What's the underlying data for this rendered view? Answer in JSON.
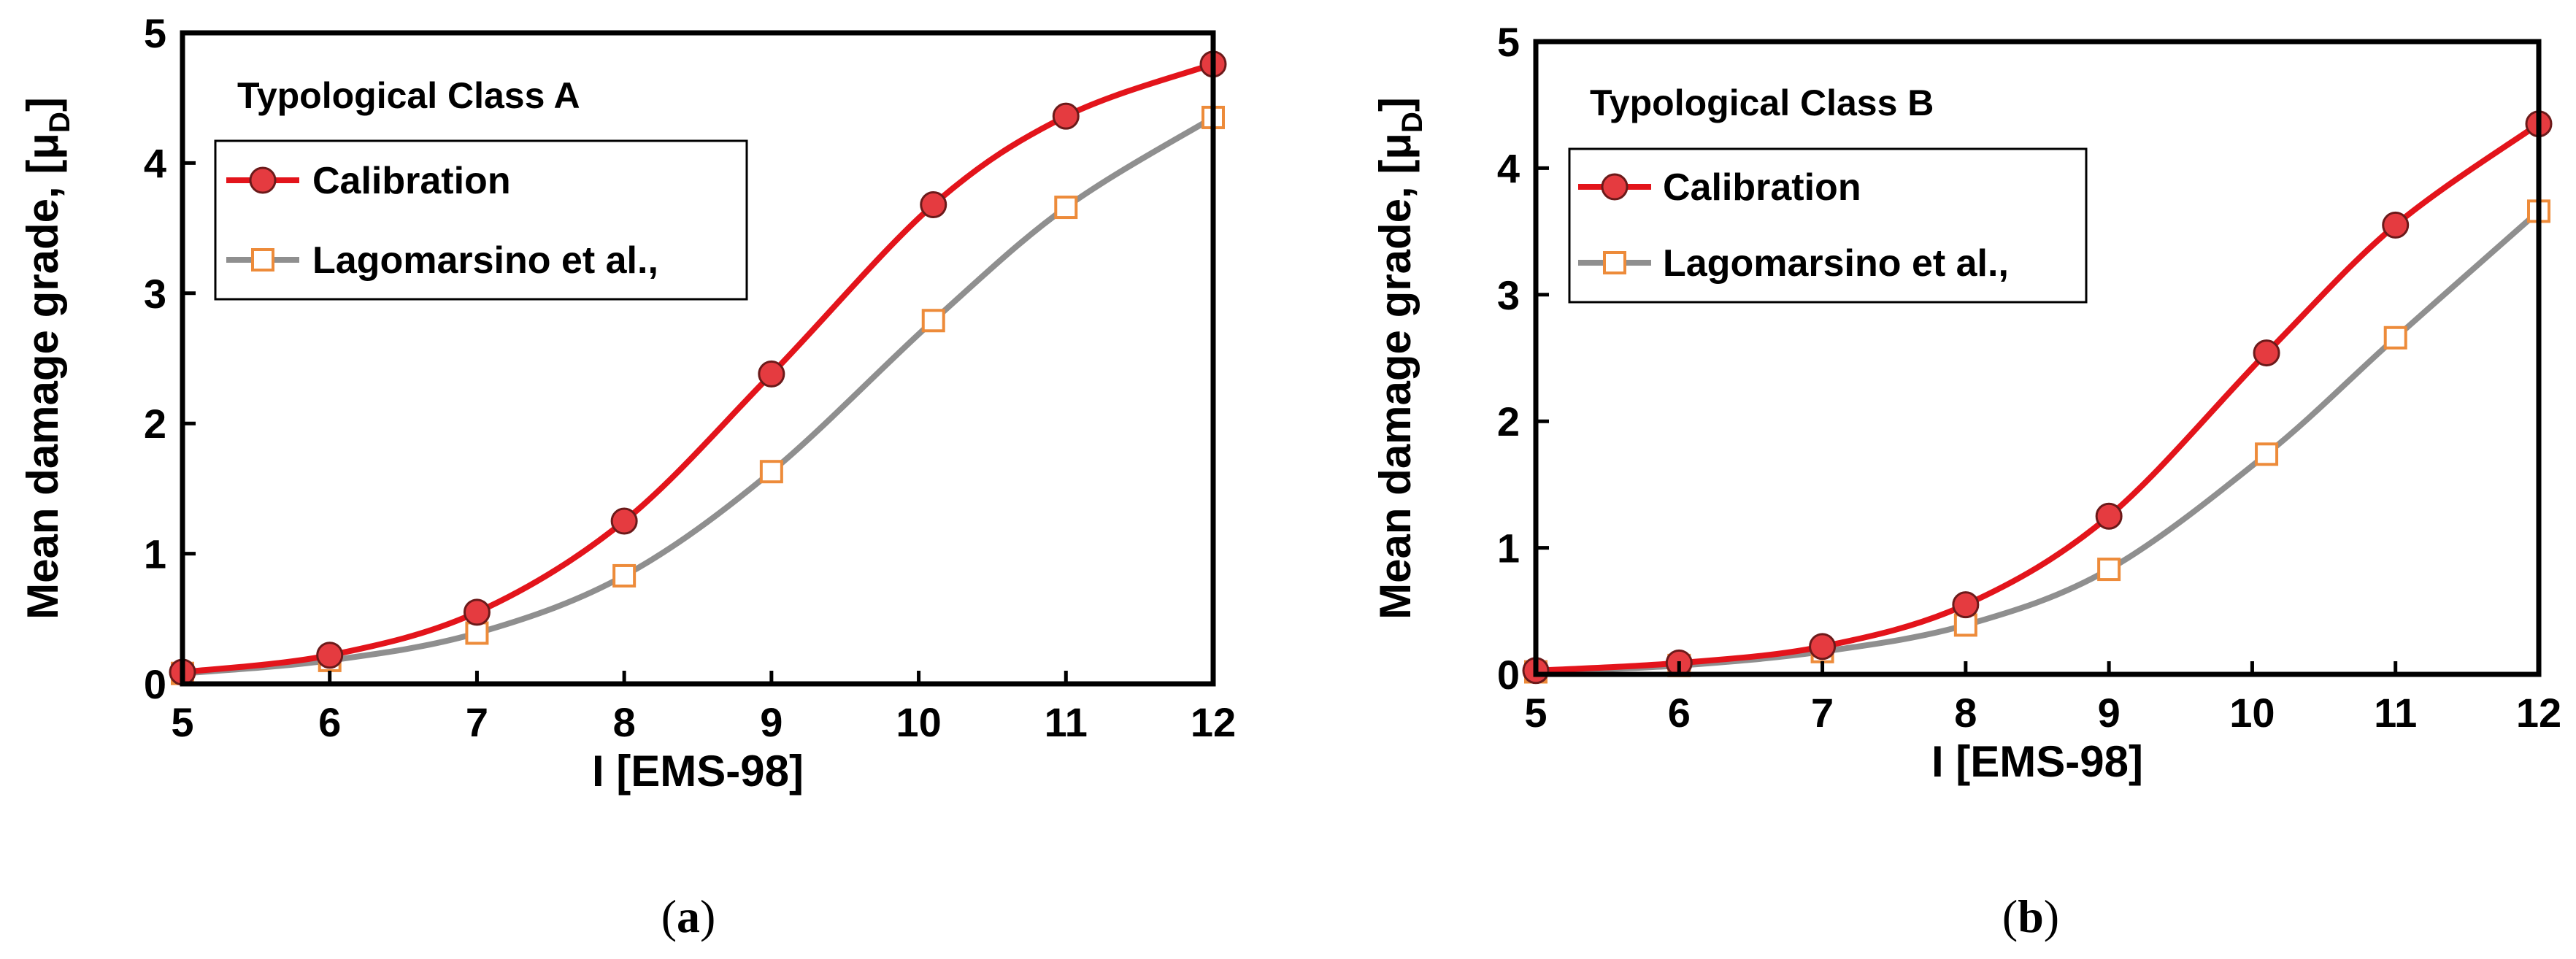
{
  "chart_data": [
    {
      "type": "line",
      "panel_label_open": "(",
      "panel_label_letter": "a",
      "panel_label_close": ")",
      "title": "Typological Class A",
      "xlabel": "I [EMS-98]",
      "ylabel_main": "Mean damage grade, [μ",
      "ylabel_sub": "D",
      "ylabel_close": "]",
      "xlim": [
        5,
        12
      ],
      "ylim": [
        0,
        5
      ],
      "xticks": [
        5,
        6,
        7,
        8,
        9,
        10,
        11,
        12
      ],
      "yticks": [
        0,
        1,
        2,
        3,
        4,
        5
      ],
      "grid": false,
      "legend_position": "top-left",
      "series": [
        {
          "name": "Calibration",
          "color": "#e3141b",
          "marker": "circle",
          "marker_fill": "#e53b40",
          "x": [
            5,
            6,
            7,
            8,
            9,
            10.1,
            11,
            12
          ],
          "values": [
            0.09,
            0.22,
            0.55,
            1.25,
            2.38,
            3.68,
            4.36,
            4.76
          ]
        },
        {
          "name": "Lagomarsino et al.,",
          "color": "#8f8f8f",
          "marker": "square",
          "marker_fill": "#ffffff",
          "marker_stroke": "#ed8b3a",
          "x": [
            5,
            6,
            7,
            8,
            9,
            10.1,
            11,
            12
          ],
          "values": [
            0.08,
            0.18,
            0.39,
            0.83,
            1.63,
            2.79,
            3.66,
            4.35
          ]
        }
      ]
    },
    {
      "type": "line",
      "panel_label_open": "(",
      "panel_label_letter": "b",
      "panel_label_close": ")",
      "title": "Typological Class B",
      "xlabel": "I [EMS-98]",
      "ylabel_main": "Mean damage grade, [μ",
      "ylabel_sub": "D",
      "ylabel_close": "]",
      "xlim": [
        5,
        12
      ],
      "ylim": [
        0,
        5
      ],
      "xticks": [
        5,
        6,
        7,
        8,
        9,
        10,
        11,
        12
      ],
      "yticks": [
        0,
        1,
        2,
        3,
        4,
        5
      ],
      "grid": false,
      "legend_position": "top-left",
      "series": [
        {
          "name": "Calibration",
          "color": "#e3141b",
          "marker": "circle",
          "marker_fill": "#e53b40",
          "x": [
            5,
            6,
            7,
            8,
            9,
            10.1,
            11,
            12
          ],
          "values": [
            0.03,
            0.09,
            0.22,
            0.55,
            1.25,
            2.54,
            3.55,
            4.35
          ]
        },
        {
          "name": "Lagomarsino et al.,",
          "color": "#8f8f8f",
          "marker": "square",
          "marker_fill": "#ffffff",
          "marker_stroke": "#ed8b3a",
          "x": [
            5,
            6,
            7,
            8,
            9,
            10.1,
            11,
            12
          ],
          "values": [
            0.02,
            0.07,
            0.18,
            0.39,
            0.83,
            1.74,
            2.66,
            3.66
          ]
        }
      ]
    }
  ]
}
